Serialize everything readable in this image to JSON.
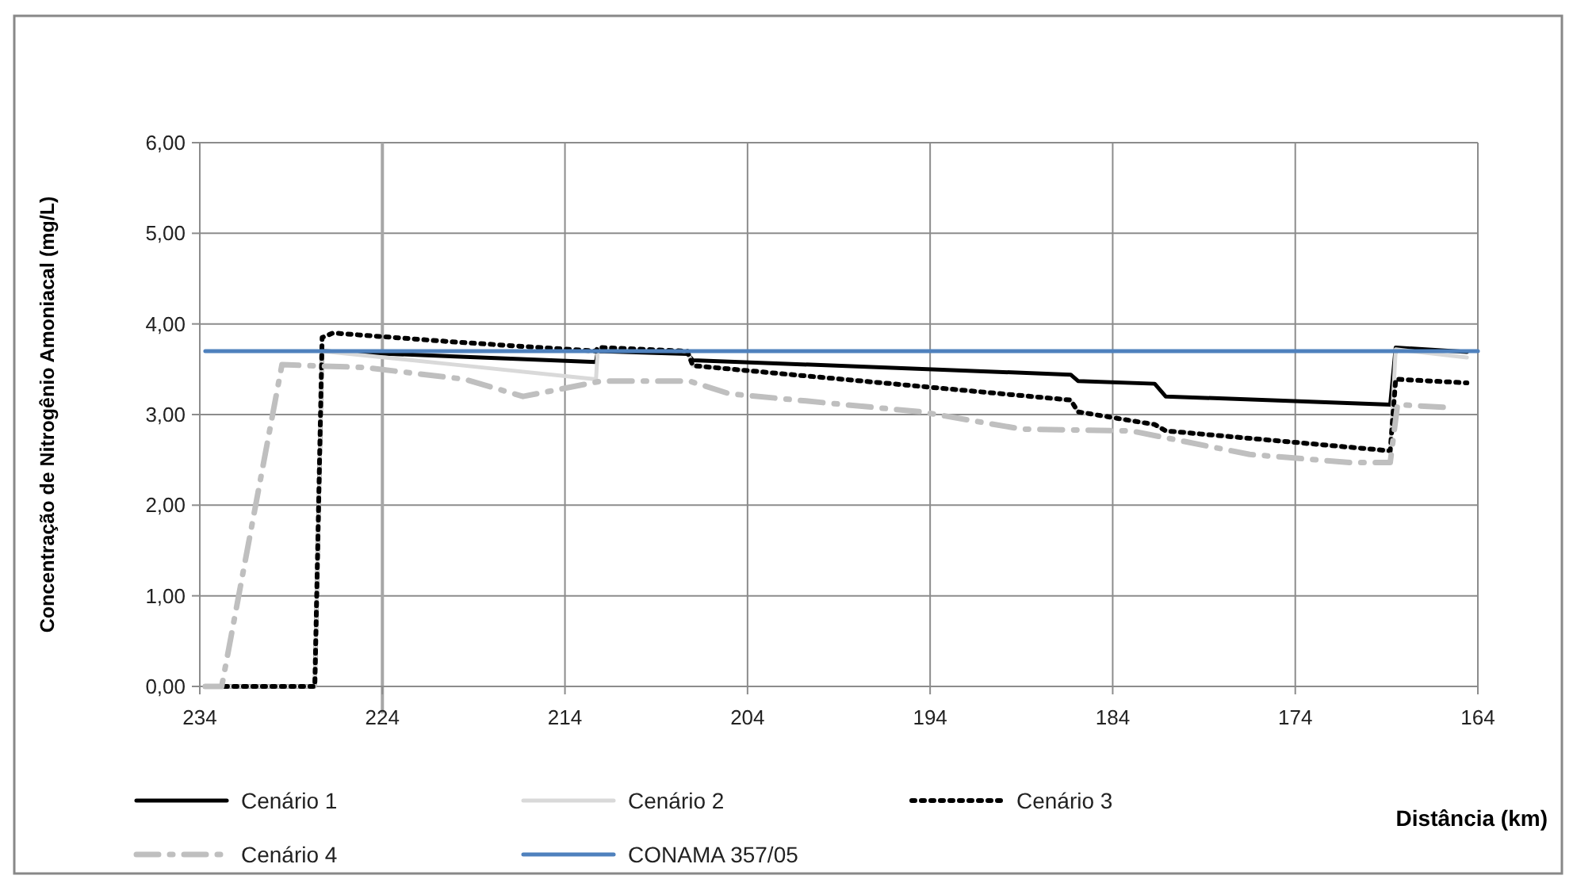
{
  "chart_data": {
    "type": "line",
    "xlabel": "Distância (km)",
    "ylabel": "Concentração de Nitrogênio Amoniacal (mg/L)",
    "xlim": [
      234,
      164
    ],
    "xticks": [
      234,
      224,
      214,
      204,
      194,
      184,
      174,
      164
    ],
    "ylim": [
      0,
      6
    ],
    "yticks": [
      {
        "value": 0,
        "label": "0,00"
      },
      {
        "value": 1,
        "label": "1,00"
      },
      {
        "value": 2,
        "label": "2,00"
      },
      {
        "value": 3,
        "label": "3,00"
      },
      {
        "value": 4,
        "label": "4,00"
      },
      {
        "value": 5,
        "label": "5,00"
      },
      {
        "value": 6,
        "label": "6,00"
      }
    ],
    "grid": true,
    "legend": "bottom",
    "marker": "none",
    "ref_lines": [
      {
        "axis": "x",
        "value": 224,
        "color": "#a6a6a6"
      }
    ],
    "series": [
      {
        "name": "Cenário 1",
        "color": "#000000",
        "line_style": "solid",
        "x": [
          233.7,
          227.7,
          227.3,
          220,
          212.3,
          212.2,
          207.3,
          207.0,
          186.3,
          185.9,
          181.7,
          181.1,
          168.8,
          168.5,
          164.6
        ],
        "values": [
          0,
          0,
          3.7,
          3.64,
          3.58,
          3.7,
          3.67,
          3.6,
          3.44,
          3.37,
          3.34,
          3.2,
          3.11,
          3.74,
          3.69
        ]
      },
      {
        "name": "Cenário 2",
        "color": "#d9d9d9",
        "line_style": "solid",
        "x": [
          233.7,
          227.7,
          227.3,
          220,
          212.3,
          212.2,
          207.3,
          207.0,
          186.3,
          185.9,
          181.7,
          181.1,
          168.8,
          168.5,
          164.6
        ],
        "values": [
          0,
          0,
          3.7,
          3.55,
          3.39,
          3.72,
          3.7,
          3.54,
          3.16,
          3.03,
          2.89,
          2.82,
          2.6,
          3.72,
          3.63
        ]
      },
      {
        "name": "Cenário 3",
        "color": "#000000",
        "line_style": "dotted",
        "x": [
          233.7,
          227.7,
          227.3,
          226.7,
          220,
          212.3,
          212.2,
          207.3,
          207.0,
          186.3,
          185.9,
          181.7,
          181.1,
          168.8,
          168.5,
          164.6
        ],
        "values": [
          0,
          0,
          3.85,
          3.9,
          3.8,
          3.7,
          3.74,
          3.7,
          3.54,
          3.16,
          3.03,
          2.89,
          2.82,
          2.6,
          3.39,
          3.35
        ]
      },
      {
        "name": "Cenário 4",
        "color": "#bfbfbf",
        "line_style": "dashed",
        "x": [
          233.7,
          232.8,
          229.5,
          225,
          219.5,
          216.3,
          212,
          207.2,
          205,
          200.8,
          194.5,
          189,
          183,
          176.5,
          171,
          168.8,
          168.4,
          165.9
        ],
        "values": [
          0,
          0,
          3.55,
          3.52,
          3.39,
          3.2,
          3.37,
          3.37,
          3.23,
          3.15,
          3.03,
          2.84,
          2.82,
          2.56,
          2.47,
          2.47,
          3.11,
          3.08
        ]
      },
      {
        "name": "CONAMA 357/05",
        "color": "#4f81bd",
        "line_style": "solid",
        "x": [
          233.7,
          164
        ],
        "values": [
          3.7,
          3.7
        ]
      }
    ]
  }
}
